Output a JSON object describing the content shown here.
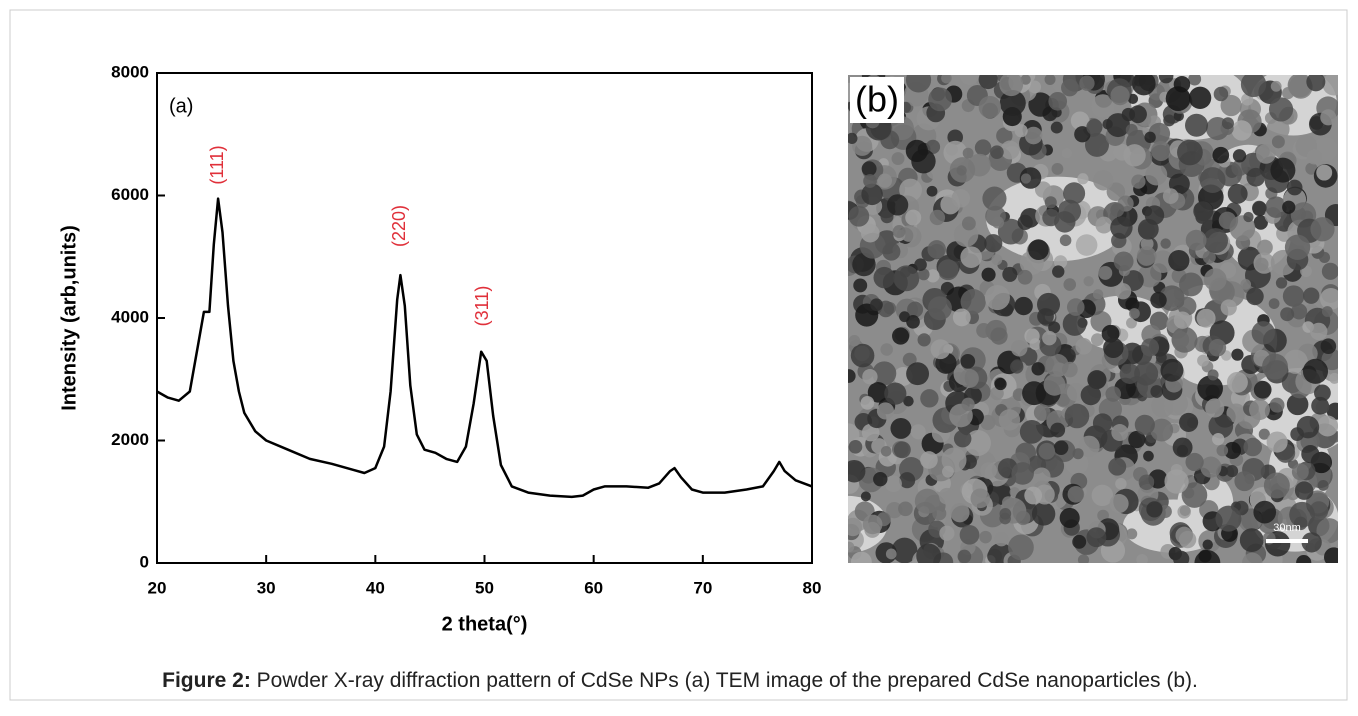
{
  "chart_data": {
    "type": "line",
    "panel_label": "(a)",
    "x_label": "2 theta(°)",
    "y_label": "Intensity (arb,units)",
    "xlim": [
      20,
      80
    ],
    "xticks": [
      20,
      30,
      40,
      50,
      60,
      70,
      80
    ],
    "ylim": [
      0,
      8000
    ],
    "yticks": [
      0,
      2000,
      4000,
      6000,
      8000
    ],
    "annotations": [
      "(111)",
      "(220)",
      "(311)"
    ],
    "annotation_color": "#e0303a",
    "x": [
      20,
      21,
      22,
      23,
      23.8,
      24.3,
      24.8,
      25.2,
      25.6,
      26,
      26.5,
      27,
      27.5,
      28,
      29,
      30,
      32,
      34,
      36,
      38,
      39,
      40,
      40.8,
      41.4,
      42,
      42.3,
      42.7,
      43.2,
      43.8,
      44.5,
      45.5,
      46.5,
      47.5,
      48.3,
      49,
      49.7,
      50.2,
      50.8,
      51.5,
      52.5,
      54,
      56,
      58,
      59,
      60,
      61,
      63,
      65,
      66,
      67,
      67.4,
      68,
      69,
      70,
      72,
      74,
      75.5,
      76.5,
      77,
      77.5,
      78.5,
      80
    ],
    "series": [
      {
        "color": "#000000",
        "values": [
          2800,
          2700,
          2650,
          2800,
          3600,
          4100,
          4100,
          5200,
          5950,
          5400,
          4200,
          3300,
          2800,
          2450,
          2150,
          2000,
          1850,
          1700,
          1620,
          1520,
          1470,
          1550,
          1900,
          2800,
          4300,
          4700,
          4200,
          2900,
          2100,
          1850,
          1800,
          1700,
          1650,
          1900,
          2600,
          3450,
          3300,
          2400,
          1600,
          1250,
          1150,
          1100,
          1080,
          1100,
          1200,
          1250,
          1250,
          1230,
          1300,
          1500,
          1550,
          1400,
          1200,
          1150,
          1150,
          1200,
          1250,
          1500,
          1650,
          1500,
          1350,
          1250
        ]
      }
    ]
  },
  "image": {
    "panel_label": "(b)",
    "scale_bar": "30nm"
  },
  "caption": {
    "label": "Figure 2:",
    "text": " Powder X-ray diffraction pattern of CdSe NPs (a) TEM image of the prepared CdSe nanoparticles (b)."
  }
}
